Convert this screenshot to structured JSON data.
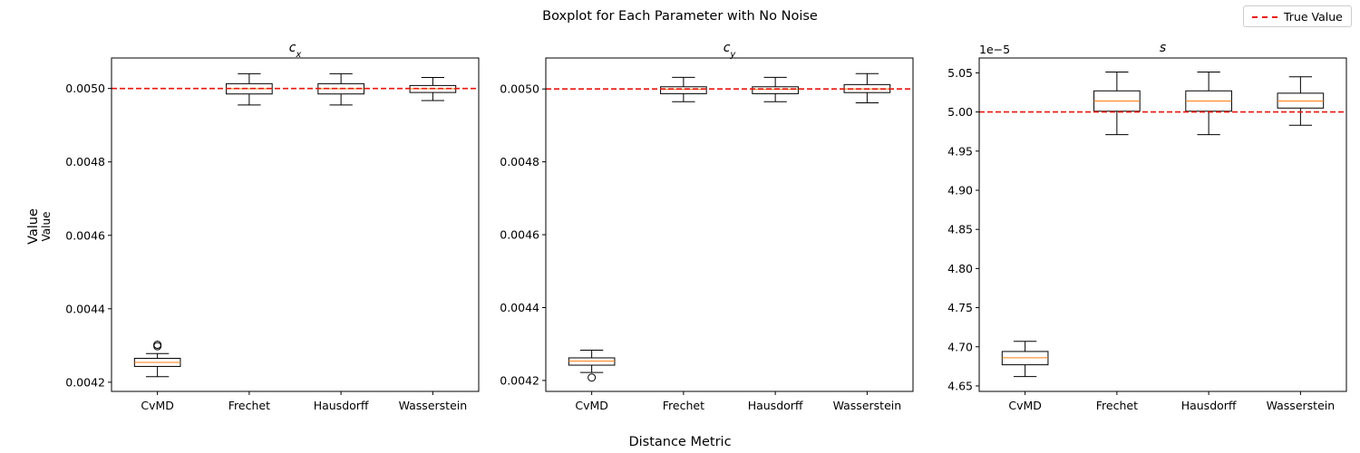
{
  "figure": {
    "title": "Boxplot for Each Parameter with No Noise",
    "xlabel": "Distance Metric",
    "ylabel_outer": "Value",
    "ylabel_inner": "Value"
  },
  "legend": {
    "label": "True Value",
    "placement": "top-right",
    "line_color": "#e8160f"
  },
  "colors": {
    "median": "#ff7f0e",
    "true_line": "#e8160f",
    "box": "#000000"
  },
  "chart_data": [
    {
      "type": "box",
      "title": "c_x",
      "categories": [
        "CvMD",
        "Frechet",
        "Hausdorff",
        "Wasserstein"
      ],
      "ylim": [
        0.004175,
        0.005083
      ],
      "yticks": [
        0.0042,
        0.0044,
        0.0046,
        0.0048,
        0.005
      ],
      "ytick_labels": [
        "0.0042",
        "0.0044",
        "0.0046",
        "0.0048",
        "0.0050"
      ],
      "offset_label": "",
      "true_value": 0.005,
      "boxes": [
        {
          "whislo": 0.004215,
          "q1": 0.004243,
          "med": 0.004254,
          "q3": 0.004265,
          "whishi": 0.004278,
          "fliers": [
            0.004298,
            0.004302
          ]
        },
        {
          "whislo": 0.004955,
          "q1": 0.004985,
          "med": 0.004999,
          "q3": 0.005013,
          "whishi": 0.00504,
          "fliers": []
        },
        {
          "whislo": 0.004955,
          "q1": 0.004985,
          "med": 0.004999,
          "q3": 0.005013,
          "whishi": 0.00504,
          "fliers": []
        },
        {
          "whislo": 0.004967,
          "q1": 0.004989,
          "med": 0.004999,
          "q3": 0.005008,
          "whishi": 0.00503,
          "fliers": []
        }
      ]
    },
    {
      "type": "box",
      "title": "c_y",
      "categories": [
        "CvMD",
        "Frechet",
        "Hausdorff",
        "Wasserstein"
      ],
      "ylim": [
        0.00417,
        0.005085
      ],
      "yticks": [
        0.0042,
        0.0044,
        0.0046,
        0.0048,
        0.005
      ],
      "ytick_labels": [
        "0.0042",
        "0.0044",
        "0.0046",
        "0.0048",
        "0.0050"
      ],
      "offset_label": "",
      "true_value": 0.005,
      "boxes": [
        {
          "whislo": 0.004222,
          "q1": 0.004242,
          "med": 0.004253,
          "q3": 0.004262,
          "whishi": 0.004283,
          "fliers": [
            0.004208
          ]
        },
        {
          "whislo": 0.004965,
          "q1": 0.004987,
          "med": 0.004999,
          "q3": 0.005006,
          "whishi": 0.005032,
          "fliers": []
        },
        {
          "whislo": 0.004965,
          "q1": 0.004987,
          "med": 0.004999,
          "q3": 0.005006,
          "whishi": 0.005032,
          "fliers": []
        },
        {
          "whislo": 0.004962,
          "q1": 0.00499,
          "med": 0.005,
          "q3": 0.005012,
          "whishi": 0.005042,
          "fliers": []
        }
      ]
    },
    {
      "type": "box",
      "title": "s",
      "categories": [
        "CvMD",
        "Frechet",
        "Hausdorff",
        "Wasserstein"
      ],
      "ylim": [
        4.643,
        5.069
      ],
      "yticks": [
        4.65,
        4.7,
        4.75,
        4.8,
        4.85,
        4.9,
        4.95,
        5.0,
        5.05
      ],
      "ytick_labels": [
        "4.65",
        "4.70",
        "4.75",
        "4.80",
        "4.85",
        "4.90",
        "4.95",
        "5.00",
        "5.05"
      ],
      "offset_label": "1e−5",
      "true_value": 5.0,
      "boxes": [
        {
          "whislo": 4.662,
          "q1": 4.677,
          "med": 4.686,
          "q3": 4.694,
          "whishi": 4.707,
          "fliers": []
        },
        {
          "whislo": 4.971,
          "q1": 5.001,
          "med": 5.014,
          "q3": 5.027,
          "whishi": 5.051,
          "fliers": []
        },
        {
          "whislo": 4.971,
          "q1": 5.001,
          "med": 5.014,
          "q3": 5.027,
          "whishi": 5.051,
          "fliers": []
        },
        {
          "whislo": 4.983,
          "q1": 5.005,
          "med": 5.014,
          "q3": 5.024,
          "whishi": 5.045,
          "fliers": []
        }
      ]
    }
  ]
}
